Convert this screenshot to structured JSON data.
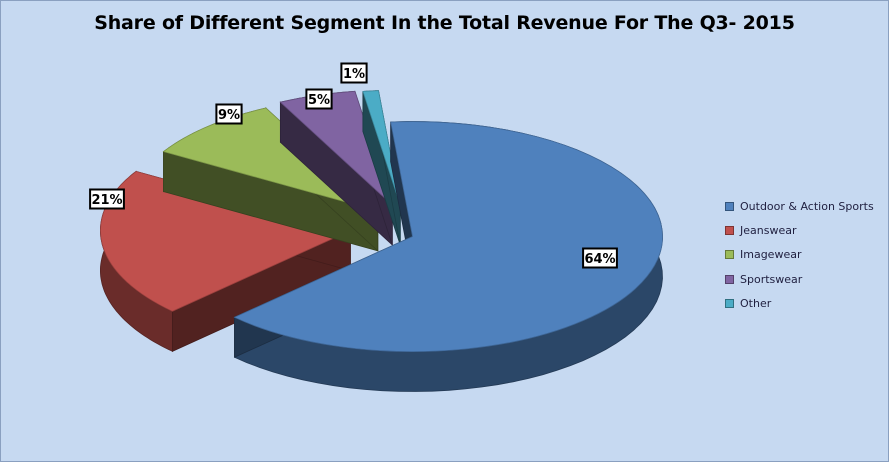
{
  "chart_data": {
    "type": "pie",
    "title": "Share of Different Segment In the Total Revenue For The Q3- 2015",
    "categories": [
      "Outdoor & Action Sports",
      "Jeanswear",
      "Imagewear",
      "Sportswear",
      "Other"
    ],
    "values": [
      64,
      21,
      9,
      5,
      1
    ],
    "data_labels": [
      "64%",
      "21%",
      "9%",
      "5%",
      "1%"
    ],
    "colors": [
      "#4f81bd",
      "#c0504d",
      "#9bbb59",
      "#8064a2",
      "#4bacc6"
    ],
    "exploded": true,
    "three_d": true,
    "legend_position": "right"
  }
}
